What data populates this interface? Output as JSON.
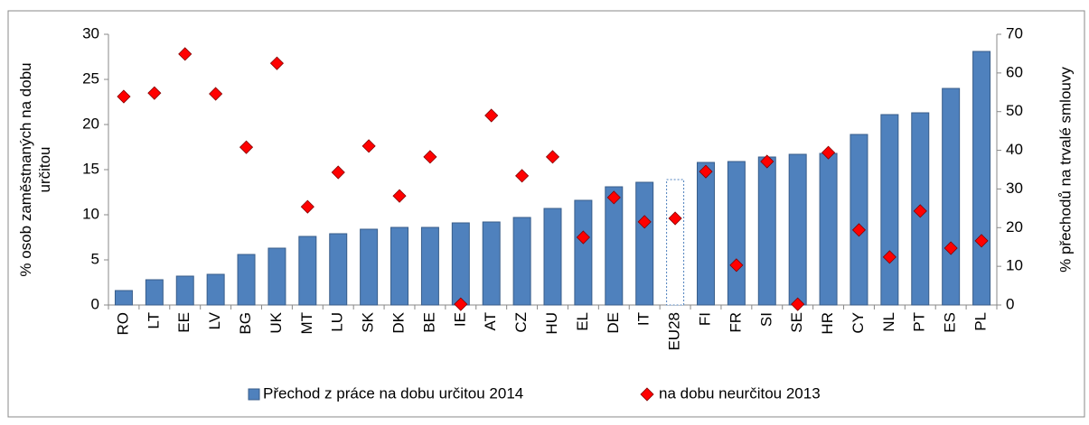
{
  "chart_data": {
    "type": "bar-scatter",
    "categories": [
      "RO",
      "LT",
      "EE",
      "LV",
      "BG",
      "UK",
      "MT",
      "LU",
      "SK",
      "DK",
      "BE",
      "IE",
      "AT",
      "CZ",
      "HU",
      "EL",
      "DE",
      "IT",
      "EU28",
      "FI",
      "FR",
      "SI",
      "SE",
      "HR",
      "CY",
      "NL",
      "PT",
      "ES",
      "PL"
    ],
    "series": [
      {
        "name": "Přechod z práce na dobu určitou 2014",
        "color": "#4f81bd",
        "bar_colors": [
          "#4f81bd",
          "#4f81bd",
          "#4f81bd",
          "#4f81bd",
          "#4f81bd",
          "#4f81bd",
          "#4f81bd",
          "#4f81bd",
          "#4f81bd",
          "#4f81bd",
          "#4f81bd",
          "#4f81bd",
          "#4f81bd",
          "#4f81bd",
          "#4f81bd",
          "#4f81bd",
          "#4f81bd",
          "#4f81bd",
          "#ffffff",
          "#4f81bd",
          "#4f81bd",
          "#4f81bd",
          "#4f81bd",
          "#4f81bd",
          "#4f81bd",
          "#4f81bd",
          "#4f81bd",
          "#4f81bd",
          "#4f81bd"
        ],
        "values": [
          1.6,
          2.8,
          3.2,
          3.4,
          5.6,
          6.3,
          7.6,
          7.9,
          8.4,
          8.6,
          8.6,
          9.1,
          9.2,
          9.7,
          10.7,
          11.6,
          13.1,
          13.6,
          13.9,
          15.8,
          15.9,
          16.4,
          16.7,
          16.8,
          18.9,
          21.1,
          21.3,
          24.0,
          28.1
        ]
      },
      {
        "name": "na dobu neurčitou 2013",
        "color": "#ff0000",
        "axis": "y2",
        "values": [
          53.9,
          54.8,
          64.9,
          54.6,
          40.8,
          62.5,
          25.4,
          34.3,
          41.1,
          28.2,
          38.3,
          0.2,
          49.0,
          33.4,
          38.3,
          17.5,
          27.8,
          21.5,
          22.4,
          34.5,
          10.3,
          37.1,
          0.2,
          39.4,
          19.4,
          12.4,
          24.3,
          14.7,
          16.6
        ]
      }
    ],
    "ylabel": "% osob zaměstnaných na dobu určitou",
    "y2label": "% přechodů na trvalé smlouvy",
    "ylim": [
      0,
      30
    ],
    "yticks": [
      0,
      5,
      10,
      15,
      20,
      25,
      30
    ],
    "y2lim": [
      0,
      70
    ],
    "y2ticks": [
      0,
      10,
      20,
      30,
      40,
      50,
      60,
      70
    ],
    "legend": "bottom"
  }
}
